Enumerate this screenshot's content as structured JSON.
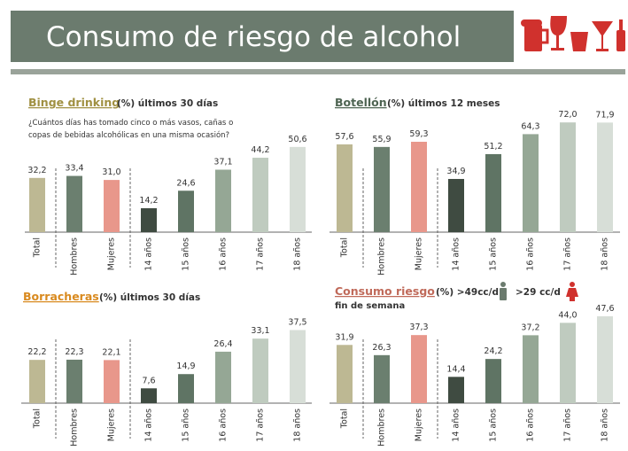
{
  "header": {
    "title": "Consumo de riesgo de alcohol"
  },
  "chart_data": [
    {
      "type": "bar",
      "title": "Binge drinking",
      "unit": "(%)",
      "period": "últimos 30 días",
      "subtitle": "¿Cuántos días has tomado cinco o más vasos, cañas o",
      "subtitle2": "copas de bebidas alcohólicas en una misma ocasión?",
      "categories": [
        "Total",
        "Hombres",
        "Mujeres",
        "14 años",
        "15 años",
        "16 años",
        "17 años",
        "18 años"
      ],
      "values": [
        32.2,
        33.4,
        31.0,
        14.2,
        24.6,
        37.1,
        44.2,
        50.6
      ],
      "value_labels": [
        "32,2",
        "33,4",
        "31,0",
        "14,2",
        "24,6",
        "37,1",
        "44,2",
        "50,6"
      ],
      "colors": [
        "#bdb893",
        "#6b7f6f",
        "#e8978b",
        "#3f4b41",
        "#5f7464",
        "#95a795",
        "#bfcbbf",
        "#d7ded7"
      ]
    },
    {
      "type": "bar",
      "title": "Botellón",
      "unit": "(%)",
      "period": "últimos 12 meses",
      "categories": [
        "Total",
        "Hombres",
        "Mujeres",
        "14 años",
        "15 años",
        "16 años",
        "17 años",
        "18 años"
      ],
      "values": [
        57.6,
        55.9,
        59.3,
        34.9,
        51.2,
        64.3,
        72.0,
        71.9
      ],
      "value_labels": [
        "57,6",
        "55,9",
        "59,3",
        "34,9",
        "51,2",
        "64,3",
        "72,0",
        "71,9"
      ],
      "colors": [
        "#bdb893",
        "#6b7f6f",
        "#e8978b",
        "#3f4b41",
        "#5f7464",
        "#95a795",
        "#bfcbbf",
        "#d7ded7"
      ]
    },
    {
      "type": "bar",
      "title": "Borracheras",
      "unit": "(%)",
      "period": "últimos 30 días",
      "categories": [
        "Total",
        "Hombres",
        "Mujeres",
        "14 años",
        "15 años",
        "16 años",
        "17 años",
        "18 años"
      ],
      "values": [
        22.2,
        22.3,
        22.1,
        7.6,
        14.9,
        26.4,
        33.1,
        37.5
      ],
      "value_labels": [
        "22,2",
        "22,3",
        "22,1",
        "7,6",
        "14,9",
        "26,4",
        "33,1",
        "37,5"
      ],
      "colors": [
        "#bdb893",
        "#6b7f6f",
        "#e8978b",
        "#3f4b41",
        "#5f7464",
        "#95a795",
        "#bfcbbf",
        "#d7ded7"
      ]
    },
    {
      "type": "bar",
      "title": "Consumo riesgo",
      "unit": "(%)",
      "period": ">49cc/d",
      "period2": ">29 cc/d",
      "note": "fin de semana",
      "categories": [
        "Total",
        "Hombres",
        "Mujeres",
        "14 años",
        "15 años",
        "16 años",
        "17 años",
        "18 años"
      ],
      "values": [
        31.9,
        26.3,
        37.3,
        14.4,
        24.2,
        37.2,
        44.0,
        47.6
      ],
      "value_labels": [
        "31,9",
        "26,3",
        "37,3",
        "14,4",
        "24,2",
        "37,2",
        "44,0",
        "47,6"
      ],
      "colors": [
        "#bdb893",
        "#6b7f6f",
        "#e8978b",
        "#3f4b41",
        "#5f7464",
        "#95a795",
        "#bfcbbf",
        "#d7ded7"
      ]
    }
  ]
}
